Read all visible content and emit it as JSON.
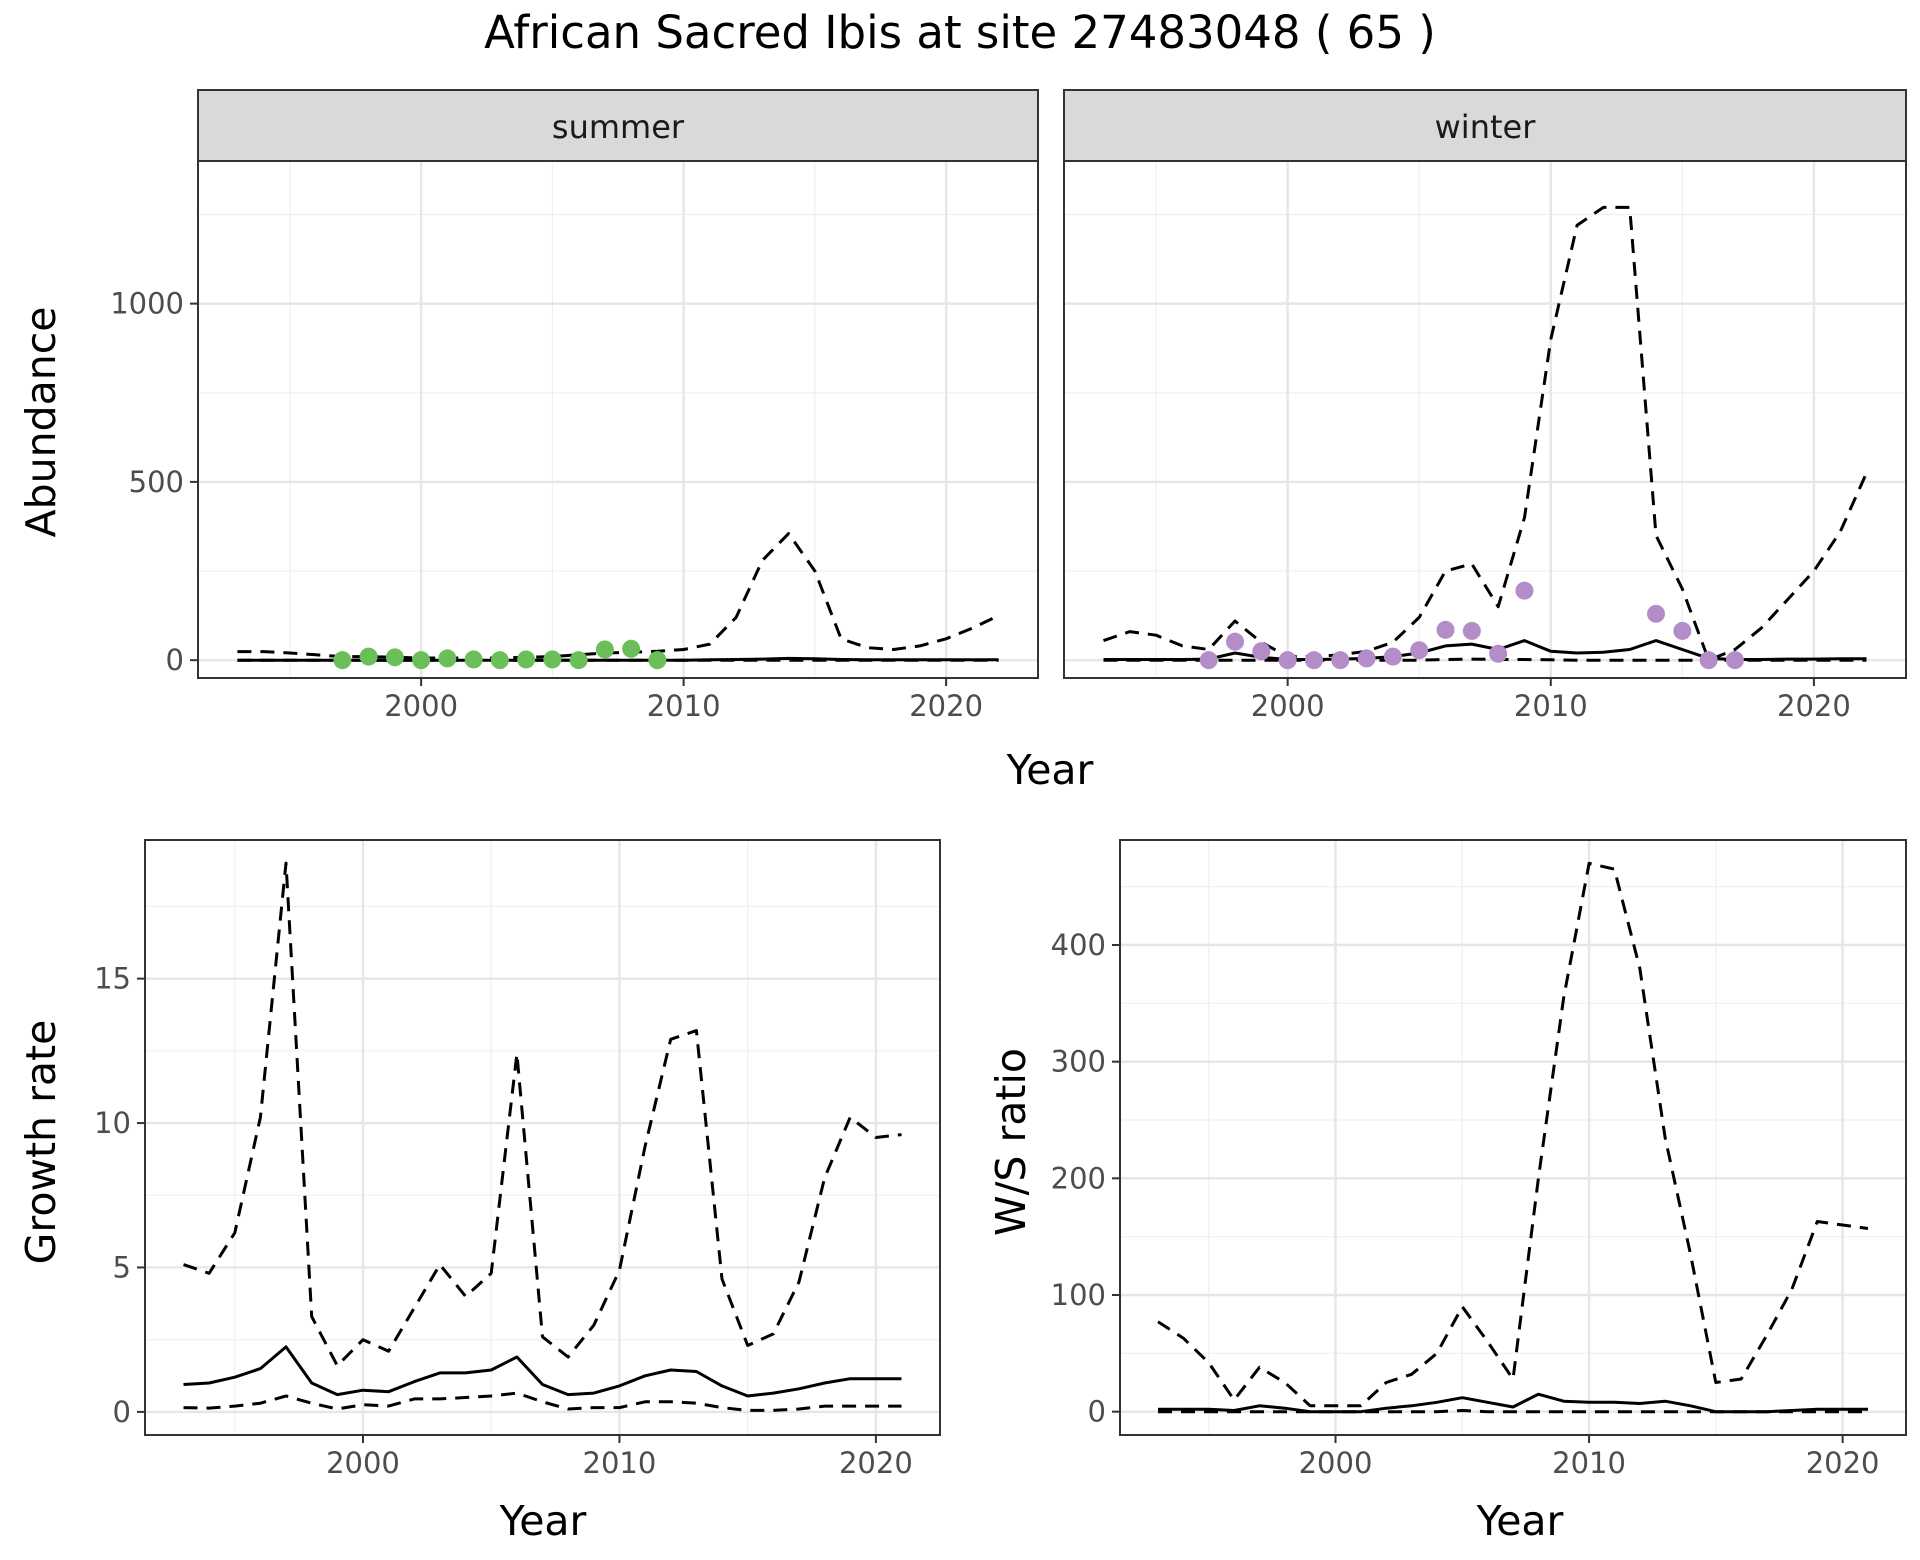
{
  "title": "African Sacred Ibis at site 27483048 ( 65 )",
  "colors": {
    "summer_points": "#6abf58",
    "winter_points": "#b48cc8",
    "lines": "#000000",
    "strip": "#d9d9d9",
    "grid": "#e6e6e6"
  },
  "chart_data": [
    {
      "type": "line",
      "facet": "summer",
      "xlabel": "Year",
      "ylabel": "Abundance",
      "xlim": [
        1991.5,
        2023.5
      ],
      "ylim": [
        -50,
        1400
      ],
      "xticks": [
        2000,
        2010,
        2020
      ],
      "yticks": [
        0,
        500,
        1000
      ],
      "grid": true,
      "x": [
        1993,
        1994,
        1995,
        1996,
        1997,
        1998,
        1999,
        2000,
        2001,
        2002,
        2003,
        2004,
        2005,
        2006,
        2007,
        2008,
        2009,
        2010,
        2011,
        2012,
        2013,
        2014,
        2015,
        2016,
        2017,
        2018,
        2019,
        2020,
        2021,
        2022
      ],
      "series": [
        {
          "role": "median",
          "style": "solid",
          "values": [
            0,
            0,
            0,
            0,
            0,
            0,
            0,
            0,
            0,
            0,
            0,
            0,
            0,
            0,
            0,
            0,
            0,
            0,
            1,
            2,
            3,
            5,
            4,
            2,
            1,
            1,
            1,
            1,
            1,
            1
          ]
        },
        {
          "role": "upper",
          "style": "dashed",
          "values": [
            24,
            24,
            20,
            15,
            10,
            10,
            8,
            6,
            6,
            6,
            6,
            8,
            10,
            15,
            20,
            22,
            25,
            30,
            45,
            120,
            280,
            355,
            250,
            60,
            35,
            30,
            40,
            60,
            90,
            125
          ]
        },
        {
          "role": "lower",
          "style": "dashed",
          "values": [
            0,
            0,
            0,
            0,
            0,
            0,
            0,
            0,
            0,
            0,
            0,
            0,
            0,
            0,
            0,
            0,
            0,
            0,
            0,
            0,
            0,
            0,
            0,
            0,
            0,
            0,
            0,
            0,
            0,
            0
          ]
        }
      ],
      "points": {
        "x": [
          1997,
          1998,
          1999,
          2000,
          2001,
          2002,
          2003,
          2004,
          2005,
          2006,
          2007,
          2008,
          2009
        ],
        "y": [
          0,
          10,
          8,
          0,
          5,
          2,
          0,
          2,
          2,
          0,
          30,
          32,
          0
        ]
      }
    },
    {
      "type": "line",
      "facet": "winter",
      "xlabel": "Year",
      "ylabel": "Abundance",
      "xlim": [
        1991.5,
        2023.5
      ],
      "ylim": [
        -50,
        1400
      ],
      "xticks": [
        2000,
        2010,
        2020
      ],
      "yticks": [
        0,
        500,
        1000
      ],
      "grid": true,
      "x": [
        1993,
        1994,
        1995,
        1996,
        1997,
        1998,
        1999,
        2000,
        2001,
        2002,
        2003,
        2004,
        2005,
        2006,
        2007,
        2008,
        2009,
        2010,
        2011,
        2012,
        2013,
        2014,
        2015,
        2016,
        2017,
        2018,
        2019,
        2020,
        2021,
        2022
      ],
      "series": [
        {
          "role": "median",
          "style": "solid",
          "values": [
            2,
            2,
            2,
            2,
            3,
            20,
            8,
            2,
            2,
            3,
            5,
            10,
            20,
            40,
            45,
            30,
            55,
            25,
            20,
            22,
            30,
            55,
            30,
            5,
            2,
            2,
            3,
            3,
            4,
            4
          ]
        },
        {
          "role": "upper",
          "style": "dashed",
          "values": [
            55,
            80,
            70,
            40,
            30,
            110,
            50,
            10,
            10,
            15,
            25,
            50,
            120,
            250,
            270,
            150,
            400,
            900,
            1220,
            1270,
            1270,
            350,
            200,
            0,
            30,
            90,
            170,
            250,
            360,
            525
          ]
        },
        {
          "role": "lower",
          "style": "dashed",
          "values": [
            0,
            0,
            0,
            0,
            0,
            0,
            0,
            0,
            0,
            0,
            0,
            0,
            0,
            2,
            3,
            2,
            2,
            1,
            0,
            0,
            0,
            0,
            0,
            0,
            0,
            0,
            0,
            0,
            0,
            0
          ]
        }
      ],
      "points": {
        "x": [
          1997,
          1998,
          1999,
          2000,
          2001,
          2002,
          2003,
          2004,
          2005,
          2006,
          2007,
          2008,
          2009,
          2014,
          2015,
          2016,
          2017
        ],
        "y": [
          0,
          52,
          25,
          0,
          0,
          0,
          5,
          10,
          28,
          85,
          82,
          18,
          195,
          130,
          82,
          0,
          0
        ]
      }
    },
    {
      "type": "line",
      "xlabel": "Year",
      "ylabel": "Growth rate",
      "xlim": [
        1991.5,
        2022.5
      ],
      "ylim": [
        -0.8,
        19.8
      ],
      "xticks": [
        2000,
        2010,
        2020
      ],
      "yticks": [
        0,
        5,
        10,
        15
      ],
      "grid": true,
      "x": [
        1993,
        1994,
        1995,
        1996,
        1997,
        1998,
        1999,
        2000,
        2001,
        2002,
        2003,
        2004,
        2005,
        2006,
        2007,
        2008,
        2009,
        2010,
        2011,
        2012,
        2013,
        2014,
        2015,
        2016,
        2017,
        2018,
        2019,
        2020,
        2021
      ],
      "series": [
        {
          "role": "median",
          "style": "solid",
          "values": [
            0.95,
            1.0,
            1.2,
            1.5,
            2.25,
            1.0,
            0.6,
            0.75,
            0.7,
            1.05,
            1.35,
            1.35,
            1.45,
            1.9,
            0.95,
            0.6,
            0.65,
            0.9,
            1.25,
            1.45,
            1.4,
            0.9,
            0.55,
            0.65,
            0.8,
            1.0,
            1.15,
            1.15,
            1.15
          ]
        },
        {
          "role": "upper",
          "style": "dashed",
          "values": [
            5.1,
            4.8,
            6.2,
            10.2,
            19.0,
            3.3,
            1.6,
            2.5,
            2.1,
            3.6,
            5.1,
            4.0,
            4.8,
            12.4,
            2.6,
            1.9,
            3.0,
            4.9,
            9.2,
            12.9,
            13.2,
            4.6,
            2.3,
            2.7,
            4.5,
            8.1,
            10.2,
            9.5,
            9.6
          ]
        },
        {
          "role": "lower",
          "style": "dashed",
          "values": [
            0.15,
            0.13,
            0.2,
            0.3,
            0.55,
            0.3,
            0.1,
            0.25,
            0.2,
            0.45,
            0.45,
            0.5,
            0.55,
            0.65,
            0.35,
            0.1,
            0.15,
            0.15,
            0.35,
            0.35,
            0.3,
            0.15,
            0.05,
            0.05,
            0.1,
            0.2,
            0.2,
            0.2,
            0.2
          ]
        }
      ]
    },
    {
      "type": "line",
      "xlabel": "Year",
      "ylabel": "W/S ratio",
      "xlim": [
        1991.5,
        2022.5
      ],
      "ylim": [
        -20,
        490
      ],
      "xticks": [
        2000,
        2010,
        2020
      ],
      "yticks": [
        0,
        100,
        200,
        300,
        400
      ],
      "grid": true,
      "x": [
        1993,
        1994,
        1995,
        1996,
        1997,
        1998,
        1999,
        2000,
        2001,
        2002,
        2003,
        2004,
        2005,
        2006,
        2007,
        2008,
        2009,
        2010,
        2011,
        2012,
        2013,
        2014,
        2015,
        2016,
        2017,
        2018,
        2019,
        2020,
        2021
      ],
      "series": [
        {
          "role": "median",
          "style": "solid",
          "values": [
            2,
            2,
            2,
            1,
            5,
            3,
            0,
            0,
            0,
            3,
            5,
            8,
            12,
            8,
            4,
            15,
            9,
            8,
            8,
            7,
            9,
            5,
            0,
            0,
            0,
            1,
            2,
            2,
            2
          ]
        },
        {
          "role": "upper",
          "style": "dashed",
          "values": [
            77,
            63,
            42,
            10,
            38,
            25,
            5,
            5,
            5,
            25,
            32,
            50,
            90,
            60,
            28,
            200,
            355,
            470,
            465,
            380,
            235,
            135,
            25,
            28,
            65,
            105,
            163,
            160,
            157
          ]
        },
        {
          "role": "lower",
          "style": "dashed",
          "values": [
            0,
            0,
            0,
            0,
            0,
            0,
            0,
            0,
            0,
            0,
            0,
            0,
            1,
            0,
            0,
            0,
            0,
            0,
            0,
            0,
            0,
            0,
            0,
            0,
            0,
            0,
            0,
            0,
            0
          ]
        }
      ]
    }
  ],
  "facets": {
    "summer_label": "summer",
    "winter_label": "winter"
  }
}
